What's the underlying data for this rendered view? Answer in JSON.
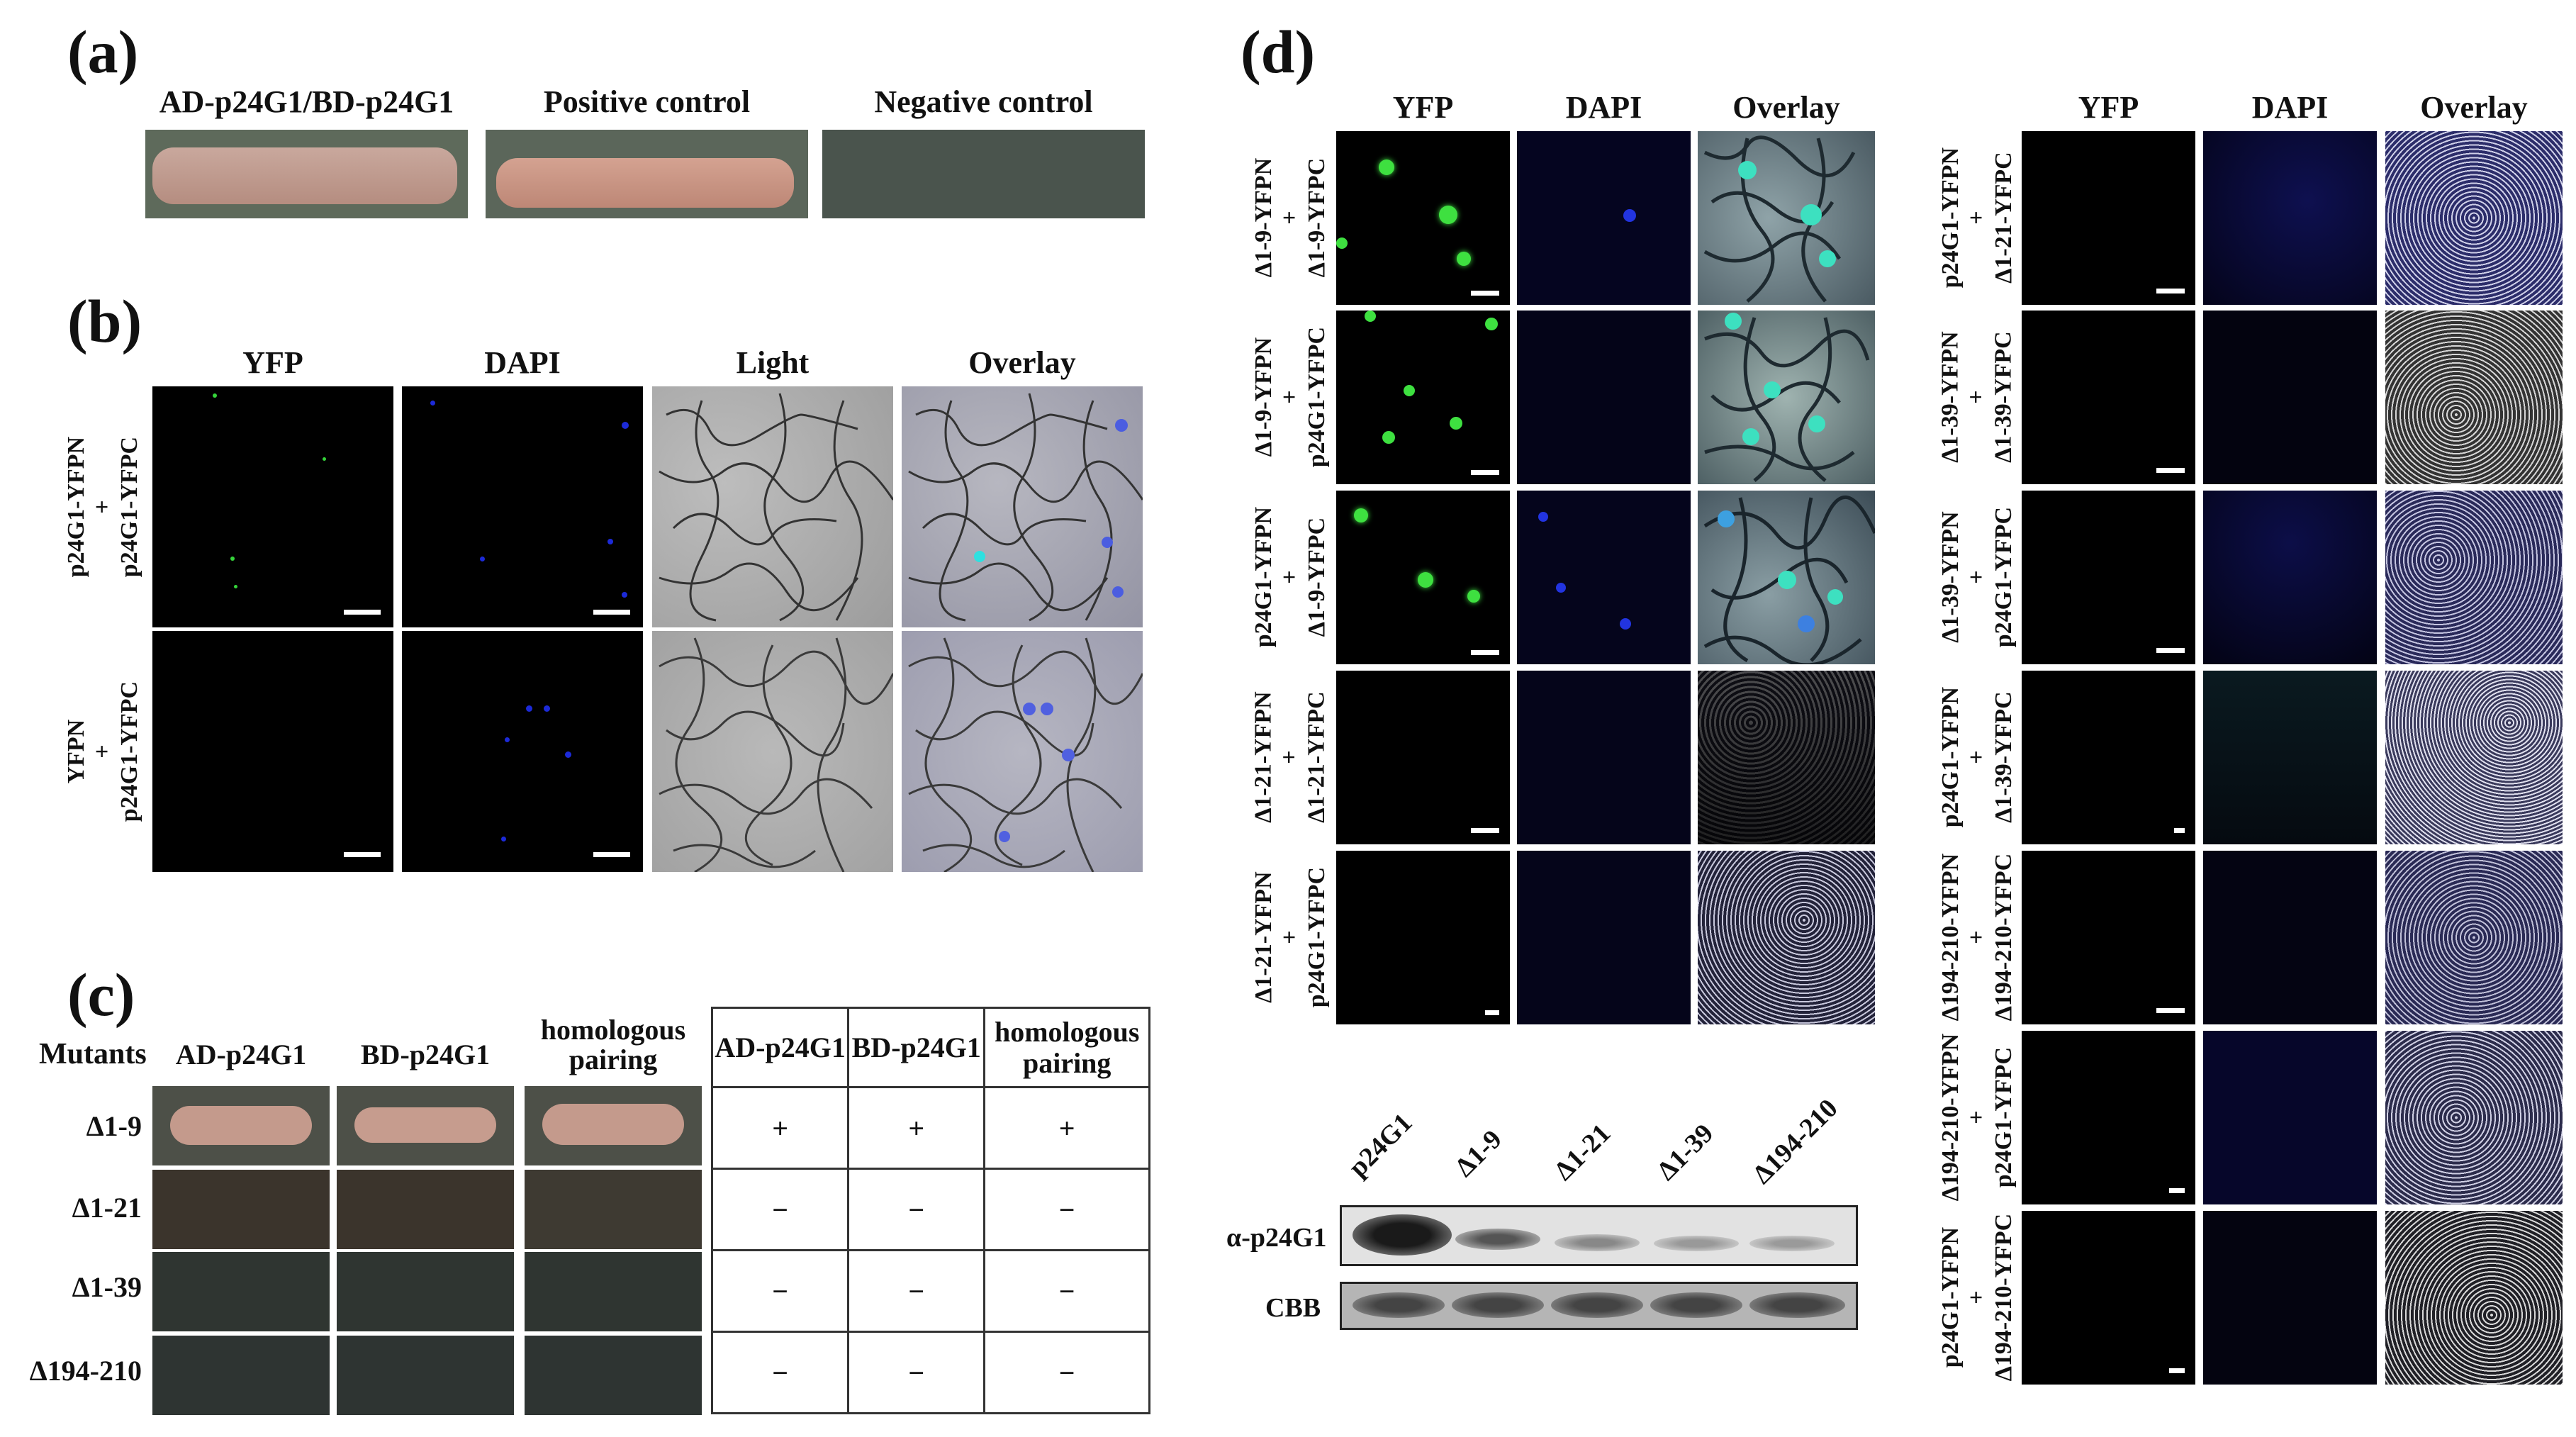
{
  "panel_a": {
    "label": "(a)",
    "columns": [
      "AD-p24G1/BD-p24G1",
      "Positive control",
      "Negative control"
    ]
  },
  "panel_b": {
    "label": "(b)",
    "columns": [
      "YFP",
      "DAPI",
      "Light",
      "Overlay"
    ],
    "rows": [
      {
        "line1": "p24G1-YFPN",
        "line2": "+",
        "line3": "p24G1-YFPC"
      },
      {
        "line1": "YFPN",
        "line2": "+",
        "line3": "p24G1-YFPC"
      }
    ]
  },
  "panel_c": {
    "label": "(c)",
    "mutants_header": "Mutants",
    "columns": [
      "AD-p24G1",
      "BD-p24G1",
      "homologous pairing"
    ],
    "table_headers": [
      "AD-p24G1",
      "BD-p24G1",
      "homologous pairing"
    ],
    "rows": [
      {
        "name": "Δ1-9",
        "results": [
          "+",
          "+",
          "+"
        ]
      },
      {
        "name": "Δ1-21",
        "results": [
          "−",
          "−",
          "−"
        ]
      },
      {
        "name": "Δ1-39",
        "results": [
          "−",
          "−",
          "−"
        ]
      },
      {
        "name": "Δ194-210",
        "results": [
          "−",
          "−",
          "−"
        ]
      }
    ]
  },
  "panel_d": {
    "label": "(d)",
    "columns": [
      "YFP",
      "DAPI",
      "Overlay"
    ],
    "left_rows": [
      {
        "line1": "Δ1-9-YFPN",
        "line2": "+",
        "line3": "Δ1-9-YFPC"
      },
      {
        "line1": "Δ1-9-YFPN",
        "line2": "+",
        "line3": "p24G1-YFPC"
      },
      {
        "line1": "p24G1-YFPN",
        "line2": "+",
        "line3": "Δ1-9-YFPC"
      },
      {
        "line1": "Δ1-21-YFPN",
        "line2": "+",
        "line3": "Δ1-21-YFPC"
      },
      {
        "line1": "Δ1-21-YFPN",
        "line2": "+",
        "line3": "p24G1-YFPC"
      }
    ],
    "right_rows": [
      {
        "line1": "p24G1-YFPN",
        "line2": "+",
        "line3": "Δ1-21-YFPC"
      },
      {
        "line1": "Δ1-39-YFPN",
        "line2": "+",
        "line3": "Δ1-39-YFPC"
      },
      {
        "line1": "Δ1-39-YFPN",
        "line2": "+",
        "line3": "p24G1-YFPC"
      },
      {
        "line1": "p24G1-YFPN",
        "line2": "+",
        "line3": "Δ1-39-YFPC"
      },
      {
        "line1": "Δ194-210-YFPN",
        "line2": "+",
        "line3": "Δ194-210-YFPC"
      },
      {
        "line1": "Δ194-210-YFPN",
        "line2": "+",
        "line3": "p24G1-YFPC"
      },
      {
        "line1": "p24G1-YFPN",
        "line2": "+",
        "line3": "Δ194-210-YFPC"
      }
    ],
    "western": {
      "lanes": [
        "p24G1",
        "Δ1-9",
        "Δ1-21",
        "Δ1-39",
        "Δ194-210"
      ],
      "blot_labels": [
        "α-p24G1",
        "CBB"
      ]
    }
  },
  "colors": {
    "yfp_signal": "#35d43a",
    "dapi_signal": "#1c2ad8",
    "plate_growth": "#c9958a",
    "plate_empty": "#3a3a36"
  }
}
